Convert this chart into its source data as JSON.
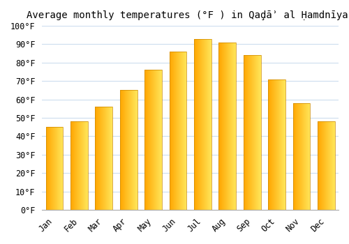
{
  "title": "Average monthly temperatures (°F ) in Qaḑāʾ al Ḥamdnīyah",
  "months": [
    "Jan",
    "Feb",
    "Mar",
    "Apr",
    "May",
    "Jun",
    "Jul",
    "Aug",
    "Sep",
    "Oct",
    "Nov",
    "Dec"
  ],
  "values": [
    45,
    48,
    56,
    65,
    76,
    86,
    93,
    91,
    84,
    71,
    58,
    48
  ],
  "bar_color": "#FFA500",
  "bar_edge_color": "#CC8800",
  "background_color": "#ffffff",
  "grid_color": "#ccddee",
  "ylim": [
    0,
    100
  ],
  "yticks": [
    0,
    10,
    20,
    30,
    40,
    50,
    60,
    70,
    80,
    90,
    100
  ],
  "ytick_labels": [
    "0°F",
    "10°F",
    "20°F",
    "30°F",
    "40°F",
    "50°F",
    "60°F",
    "70°F",
    "80°F",
    "90°F",
    "100°F"
  ],
  "title_fontsize": 10,
  "tick_fontsize": 8.5
}
